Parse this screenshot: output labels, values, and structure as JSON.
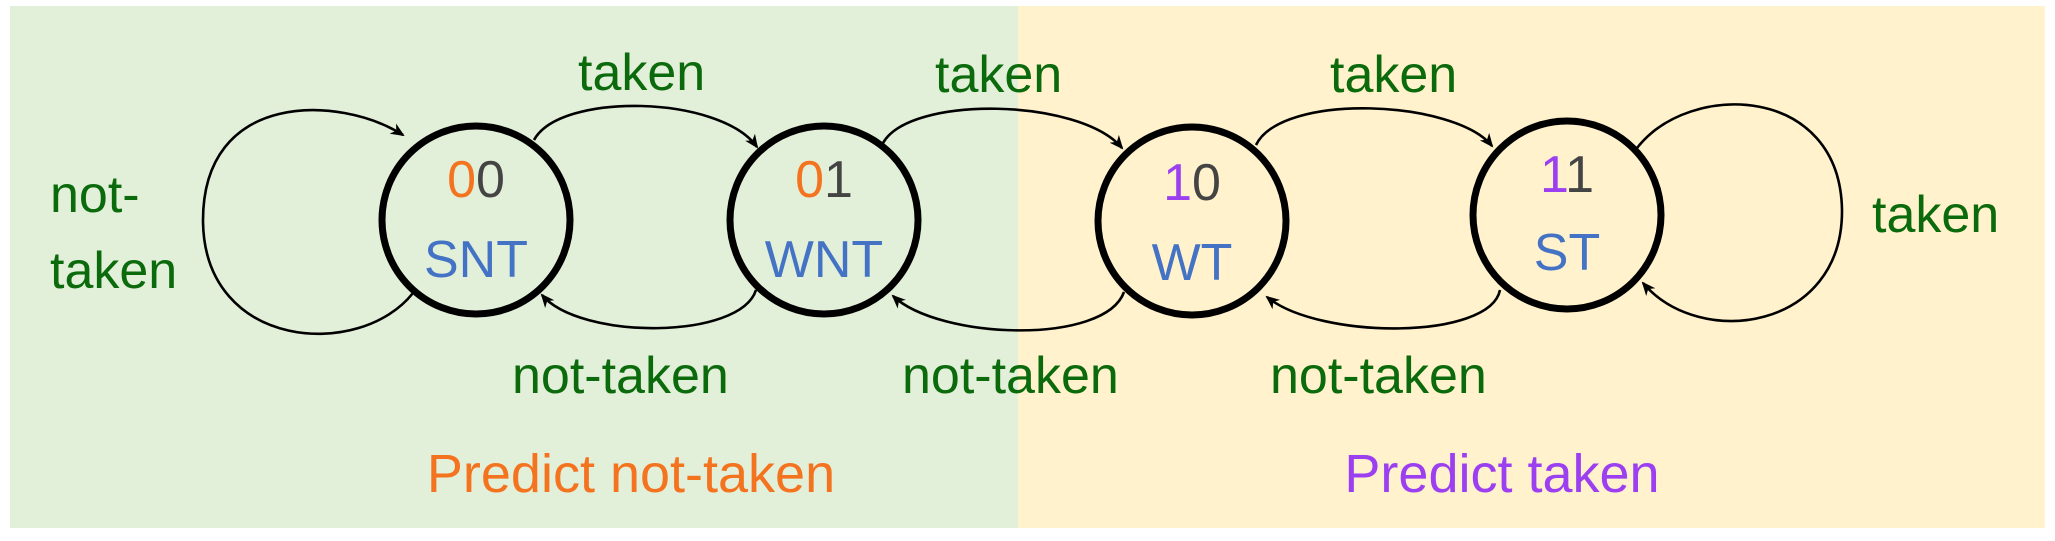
{
  "colors": {
    "left_bg": "#e2efd9",
    "right_bg": "#fff2cc",
    "edge_label": "#0b6a0b",
    "state_name": "#4472c4",
    "bit_orange": "#f4731f",
    "bit_purple": "#9b3ff0",
    "bit_gray": "#444444"
  },
  "regions": {
    "left_label": "Predict not-taken",
    "right_label": "Predict taken"
  },
  "states": [
    {
      "name": "SNT",
      "bit1": "0",
      "bit2": "0"
    },
    {
      "name": "WNT",
      "bit1": "0",
      "bit2": "1"
    },
    {
      "name": "WT",
      "bit1": "1",
      "bit2": "0"
    },
    {
      "name": "ST",
      "bit1": "1",
      "bit2": "1"
    }
  ],
  "edges": {
    "self_snt": "not-\ntaken",
    "self_snt_line1": "not-",
    "self_snt_line2": "taken",
    "snt_to_wnt": "taken",
    "wnt_to_wt": "taken",
    "wt_to_st": "taken",
    "self_st": "taken",
    "wnt_to_snt": "not-taken",
    "wt_to_wnt": "not-taken",
    "st_to_wt": "not-taken"
  }
}
